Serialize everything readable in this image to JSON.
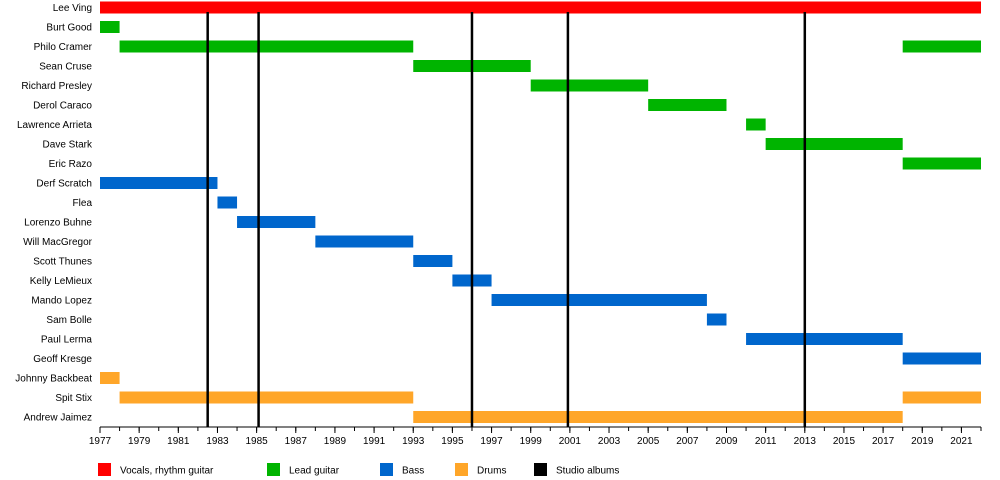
{
  "chart_data": {
    "type": "timeline",
    "x_range": [
      1977,
      2022
    ],
    "x_ticks": [
      1977,
      1979,
      1981,
      1983,
      1985,
      1987,
      1989,
      1991,
      1993,
      1995,
      1997,
      1999,
      2001,
      2003,
      2005,
      2007,
      2009,
      2011,
      2013,
      2015,
      2017,
      2019,
      2021
    ],
    "members": [
      {
        "name": "Lee Ving",
        "spans": [
          {
            "role": "vocals",
            "start": 1977,
            "end": 2022
          }
        ]
      },
      {
        "name": "Burt Good",
        "spans": [
          {
            "role": "lead",
            "start": 1977,
            "end": 1978
          }
        ]
      },
      {
        "name": "Philo Cramer",
        "spans": [
          {
            "role": "lead",
            "start": 1978,
            "end": 1993
          },
          {
            "role": "lead",
            "start": 2018,
            "end": 2022
          }
        ]
      },
      {
        "name": "Sean Cruse",
        "spans": [
          {
            "role": "lead",
            "start": 1993,
            "end": 1999
          }
        ]
      },
      {
        "name": "Richard Presley",
        "spans": [
          {
            "role": "lead",
            "start": 1999,
            "end": 2005
          }
        ]
      },
      {
        "name": "Derol Caraco",
        "spans": [
          {
            "role": "lead",
            "start": 2005,
            "end": 2009
          }
        ]
      },
      {
        "name": "Lawrence Arrieta",
        "spans": [
          {
            "role": "lead",
            "start": 2010,
            "end": 2011
          }
        ]
      },
      {
        "name": "Dave Stark",
        "spans": [
          {
            "role": "lead",
            "start": 2011,
            "end": 2018
          }
        ]
      },
      {
        "name": "Eric Razo",
        "spans": [
          {
            "role": "lead",
            "start": 2018,
            "end": 2022
          }
        ]
      },
      {
        "name": "Derf Scratch",
        "spans": [
          {
            "role": "bass",
            "start": 1977,
            "end": 1983
          }
        ]
      },
      {
        "name": "Flea",
        "spans": [
          {
            "role": "bass",
            "start": 1983,
            "end": 1984
          }
        ]
      },
      {
        "name": "Lorenzo Buhne",
        "spans": [
          {
            "role": "bass",
            "start": 1984,
            "end": 1988
          }
        ]
      },
      {
        "name": "Will MacGregor",
        "spans": [
          {
            "role": "bass",
            "start": 1988,
            "end": 1993
          }
        ]
      },
      {
        "name": "Scott Thunes",
        "spans": [
          {
            "role": "bass",
            "start": 1993,
            "end": 1995
          }
        ]
      },
      {
        "name": "Kelly LeMieux",
        "spans": [
          {
            "role": "bass",
            "start": 1995,
            "end": 1997
          }
        ]
      },
      {
        "name": "Mando Lopez",
        "spans": [
          {
            "role": "bass",
            "start": 1997,
            "end": 2008
          }
        ]
      },
      {
        "name": "Sam Bolle",
        "spans": [
          {
            "role": "bass",
            "start": 2008,
            "end": 2009
          }
        ]
      },
      {
        "name": "Paul Lerma",
        "spans": [
          {
            "role": "bass",
            "start": 2010,
            "end": 2018
          }
        ]
      },
      {
        "name": "Geoff Kresge",
        "spans": [
          {
            "role": "bass",
            "start": 2018,
            "end": 2022
          }
        ]
      },
      {
        "name": "Johnny Backbeat",
        "spans": [
          {
            "role": "drums",
            "start": 1977,
            "end": 1978
          }
        ]
      },
      {
        "name": "Spit Stix",
        "spans": [
          {
            "role": "drums",
            "start": 1978,
            "end": 1993
          },
          {
            "role": "drums",
            "start": 2018,
            "end": 2022
          }
        ]
      },
      {
        "name": "Andrew Jaimez",
        "spans": [
          {
            "role": "drums",
            "start": 1993,
            "end": 2018
          }
        ]
      }
    ],
    "studio_albums": [
      1982.5,
      1985.1,
      1996,
      2000.9,
      2013
    ],
    "legend": [
      {
        "role": "vocals",
        "label": "Vocals, rhythm guitar",
        "color": "#ff0000"
      },
      {
        "role": "lead",
        "label": "Lead guitar",
        "color": "#00b400"
      },
      {
        "role": "bass",
        "label": "Bass",
        "color": "#0066cc"
      },
      {
        "role": "drums",
        "label": "Drums",
        "color": "#ffa629"
      },
      {
        "role": "albums",
        "label": "Studio albums",
        "color": "#000000"
      }
    ]
  }
}
